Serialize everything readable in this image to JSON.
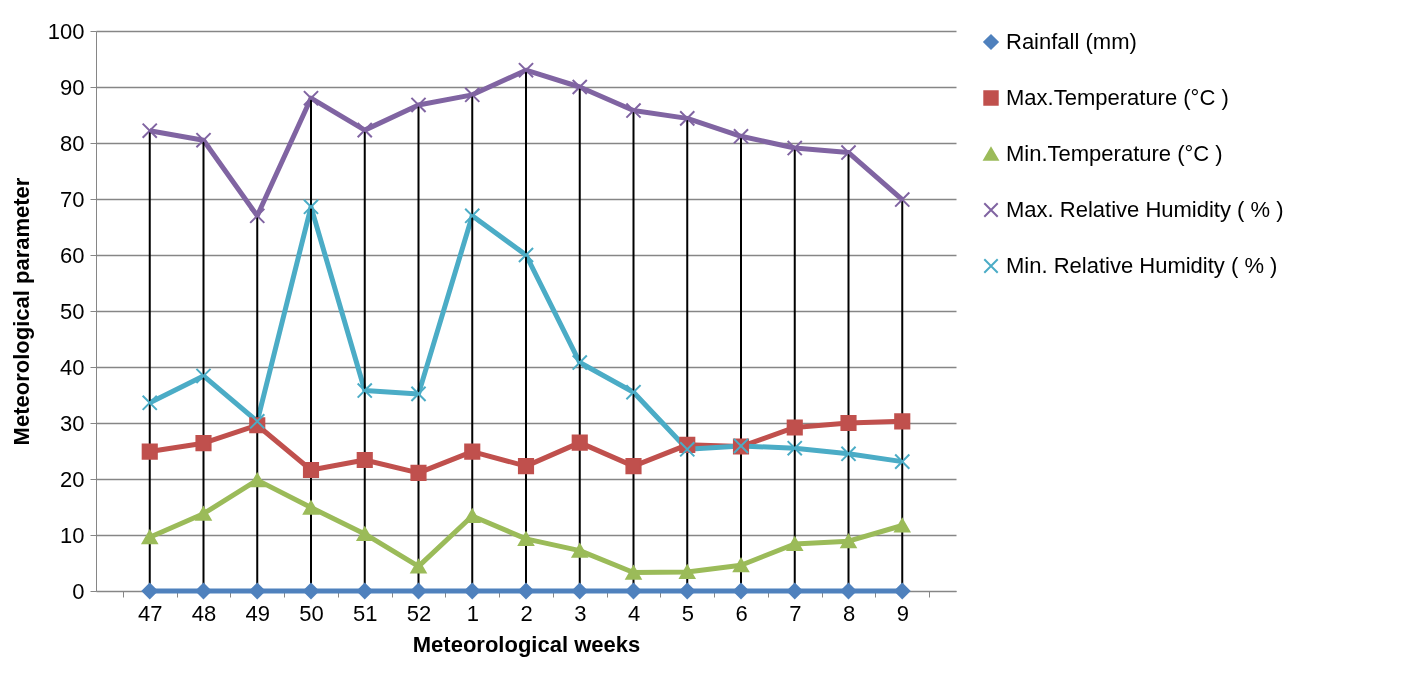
{
  "chart_data": {
    "type": "line",
    "xlabel": "Meteorological weeks",
    "ylabel": "Meteorological parameter",
    "categories": [
      "47",
      "48",
      "49",
      "50",
      "51",
      "52",
      "1",
      "2",
      "3",
      "4",
      "5",
      "6",
      "7",
      "8",
      "9"
    ],
    "series": [
      {
        "name": "Rainfall (mm)",
        "color": "#4f81bd",
        "marker": "diamond",
        "values": [
          0,
          0,
          0,
          0,
          0,
          0,
          0,
          0,
          0,
          0,
          0,
          0,
          0,
          0,
          0
        ]
      },
      {
        "name": "Max.Temperature (°C )",
        "color": "#c0504d",
        "marker": "square",
        "values": [
          24.9,
          26.4,
          29.6,
          21.6,
          23.4,
          21.1,
          24.9,
          22.3,
          26.5,
          22.3,
          26.1,
          25.8,
          29.2,
          30,
          30.3
        ]
      },
      {
        "name": "Min.Temperature (°C )",
        "color": "#9bbb59",
        "marker": "triangle",
        "values": [
          9.6,
          13.8,
          19.8,
          14.9,
          10.2,
          4.4,
          13.4,
          9.3,
          7.2,
          3.3,
          3.4,
          4.6,
          8.4,
          8.9,
          11.7
        ]
      },
      {
        "name": "Max. Relative Humidity ( % )",
        "color": "#8064a2",
        "marker": "cross",
        "values": [
          82.2,
          80.5,
          67,
          88,
          82.3,
          86.8,
          88.6,
          93,
          90,
          85.8,
          84.4,
          81.2,
          79.1,
          78.3,
          69.9
        ]
      },
      {
        "name": "Min. Relative Humidity ( % )",
        "color": "#4bacc6",
        "marker": "cross",
        "values": [
          33.6,
          38.4,
          30.3,
          68.6,
          35.8,
          35.2,
          67,
          60,
          40.8,
          35.5,
          25.3,
          25.9,
          25.5,
          24.5,
          23.1
        ]
      }
    ],
    "ref_lines": [
      {
        "axis": "x",
        "value": "47",
        "color": "#000000"
      },
      {
        "axis": "x",
        "value": "48",
        "color": "#000000"
      },
      {
        "axis": "x",
        "value": "49",
        "color": "#000000"
      },
      {
        "axis": "x",
        "value": "50",
        "color": "#000000"
      },
      {
        "axis": "x",
        "value": "51",
        "color": "#000000"
      },
      {
        "axis": "x",
        "value": "52",
        "color": "#000000"
      },
      {
        "axis": "x",
        "value": "1",
        "color": "#000000"
      },
      {
        "axis": "x",
        "value": "2",
        "color": "#000000"
      },
      {
        "axis": "x",
        "value": "3",
        "color": "#000000"
      },
      {
        "axis": "x",
        "value": "4",
        "color": "#000000"
      },
      {
        "axis": "x",
        "value": "5",
        "color": "#000000"
      },
      {
        "axis": "x",
        "value": "6",
        "color": "#000000"
      },
      {
        "axis": "x",
        "value": "7",
        "color": "#000000"
      },
      {
        "axis": "x",
        "value": "8",
        "color": "#000000"
      },
      {
        "axis": "x",
        "value": "9",
        "color": "#000000"
      }
    ],
    "ylim": [
      0,
      100
    ],
    "yticks": [
      0,
      10,
      20,
      30,
      40,
      50,
      60,
      70,
      80,
      90,
      100
    ],
    "grid": "y",
    "legend": "right",
    "line_style": "solid"
  }
}
